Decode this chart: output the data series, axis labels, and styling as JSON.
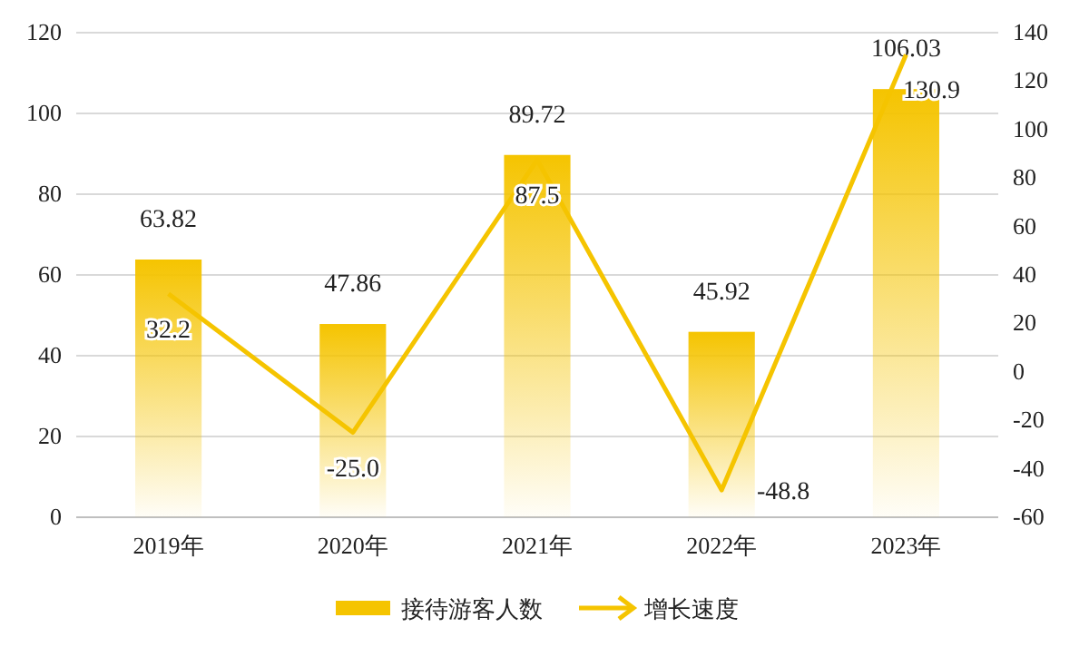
{
  "chart_data": {
    "type": "bar",
    "categories": [
      "2019年",
      "2020年",
      "2021年",
      "2022年",
      "2023年"
    ],
    "series": [
      {
        "name": "接待游客人数",
        "color": "#f5c400",
        "values": [
          63.82,
          47.86,
          89.72,
          45.92,
          106.03
        ]
      },
      {
        "name": "增长速度",
        "type": "line",
        "axis": "y2",
        "color": "#f5c400",
        "values": [
          32.2,
          -25.0,
          87.5,
          -48.8,
          130.9
        ],
        "value_labels": [
          "32.2",
          "-25.0",
          "87.5",
          "-48.8",
          "130.9"
        ]
      }
    ],
    "ylim": [
      0,
      120
    ],
    "yticks": [
      0,
      20,
      40,
      60,
      80,
      100,
      120
    ],
    "y2lim": [
      -60,
      140
    ],
    "y2ticks": [
      -60,
      -40,
      -20,
      0,
      20,
      40,
      60,
      80,
      100,
      120,
      140
    ],
    "grid": "y",
    "legend": "bottom",
    "data_labels": true
  }
}
